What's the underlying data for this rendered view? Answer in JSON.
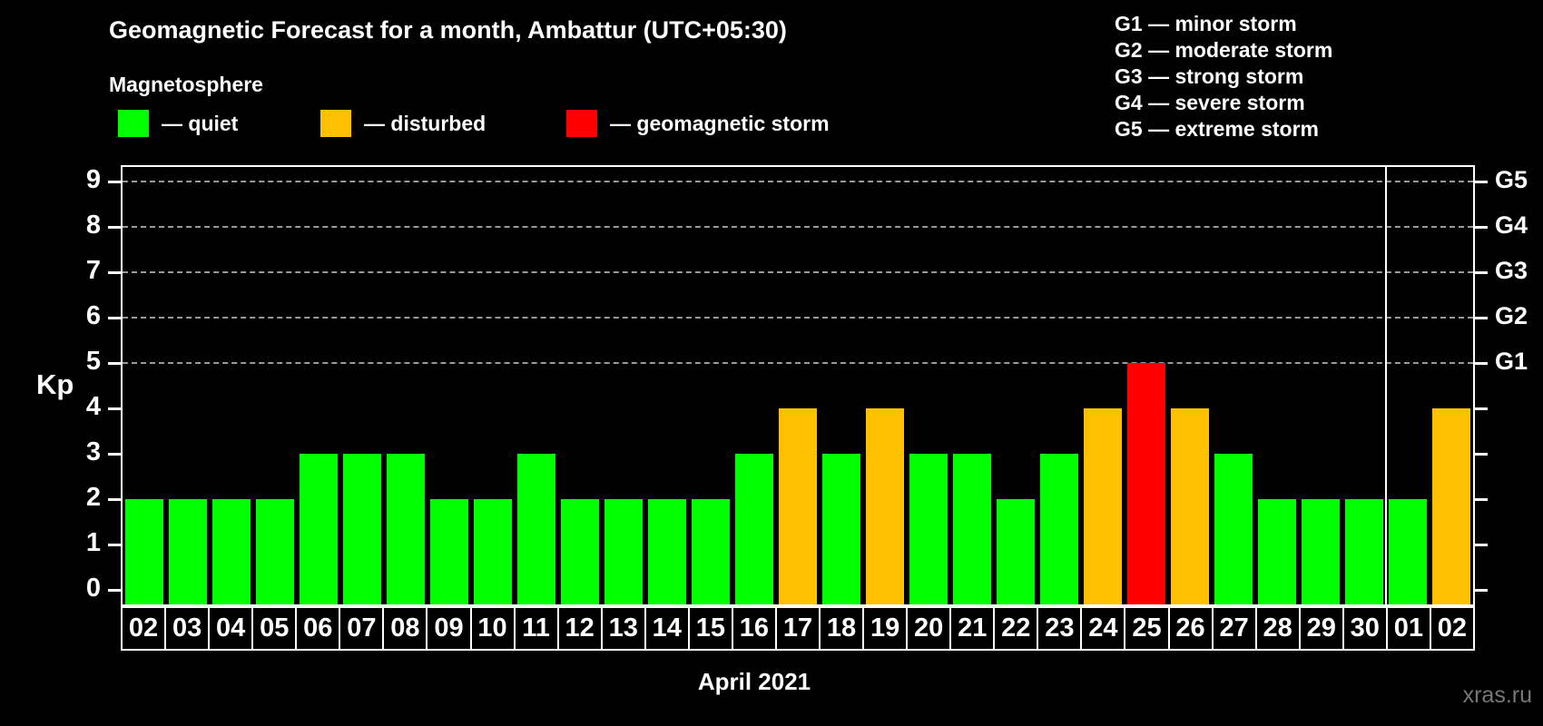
{
  "header": {
    "title": "Geomagnetic Forecast for a month, Ambattur (UTC+05:30)",
    "subtitle": "Magnetosphere"
  },
  "legend": {
    "items": [
      {
        "key": "quiet",
        "label": "— quiet",
        "color": "#00ff00"
      },
      {
        "key": "disturbed",
        "label": "— disturbed",
        "color": "#ffc000"
      },
      {
        "key": "storm",
        "label": "— geomagnetic storm",
        "color": "#ff0000"
      }
    ]
  },
  "storm_legend": {
    "lines": [
      "G1 — minor storm",
      "G2 — moderate storm",
      "G3 — strong storm",
      "G4 — severe storm",
      "G5 — extreme storm"
    ]
  },
  "chart_data": {
    "type": "bar",
    "title": "Geomagnetic Forecast for a month, Ambattur (UTC+05:30)",
    "ylabel": "Kp",
    "xlabel": "April 2021",
    "ylim": [
      0,
      9
    ],
    "yticks": [
      0,
      1,
      2,
      3,
      4,
      5,
      6,
      7,
      8,
      9
    ],
    "gridline_values": [
      5,
      6,
      7,
      8,
      9
    ],
    "grid": "dashed",
    "g_scale": {
      "5": "G1",
      "6": "G2",
      "7": "G3",
      "8": "G4",
      "9": "G5"
    },
    "categories": [
      "02",
      "03",
      "04",
      "05",
      "06",
      "07",
      "08",
      "09",
      "10",
      "11",
      "12",
      "13",
      "14",
      "15",
      "16",
      "17",
      "18",
      "19",
      "20",
      "21",
      "22",
      "23",
      "24",
      "25",
      "26",
      "27",
      "28",
      "29",
      "30",
      "01",
      "02"
    ],
    "values": [
      2,
      2,
      2,
      2,
      3,
      3,
      3,
      2,
      2,
      3,
      2,
      2,
      2,
      2,
      3,
      4,
      3,
      4,
      3,
      3,
      2,
      3,
      4,
      5,
      4,
      3,
      2,
      2,
      2,
      2,
      4
    ],
    "colors": {
      "quiet": "#00ff00",
      "disturbed": "#ffc000",
      "storm": "#ff0000"
    },
    "color_rules": {
      "disturbed_min": 4,
      "storm_min": 5
    },
    "month_separator_after_index": 28,
    "legend_position": "top"
  },
  "footer": {
    "watermark": "xras.ru"
  }
}
